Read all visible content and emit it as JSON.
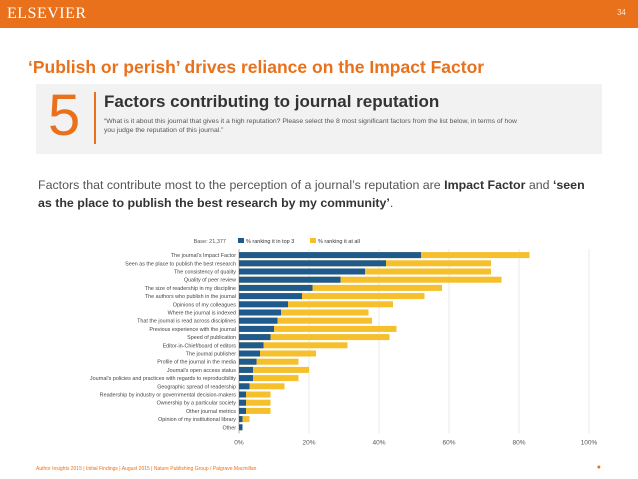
{
  "header": {
    "brand": "ELSEVIER",
    "slide_number": "34"
  },
  "slide_title": "‘Publish or perish’ drives reliance on the Impact Factor",
  "panel": {
    "number": "5",
    "heading": "Factors contributing to journal reputation",
    "question": "“What is it about this journal that gives it a high reputation? Please select the 8 most significant factors from the list below, in terms of how you judge the reputation of this journal.”"
  },
  "lead": {
    "text_1": "Factors that contribute most to the perception of a journal’s reputation are ",
    "bold_1": "Impact Factor",
    "text_2": " and ",
    "bold_2": "‘seen as the place to publish the best research by my community’",
    "text_3": "."
  },
  "colors": {
    "brand_orange": "#e9711c",
    "top3_blue": "#1f5a8c",
    "at_all_yellow": "#f5c02b"
  },
  "chart_data": {
    "type": "bar",
    "orientation": "horizontal",
    "stacked": "overlay",
    "base_label": "Base: 21,377",
    "categories": [
      "The journal’s Impact Factor",
      "Seen as the place to publish the best research",
      "The consistency of quality",
      "Quality of peer review",
      "The size of readership in my discipline",
      "The authors who publish in the journal",
      "Opinions of my colleagues",
      "Where the journal is indexed",
      "That the journal is read across disciplines",
      "Previous experience with the journal",
      "Speed of publication",
      "Editor-in-Chief/board of editors",
      "The journal publisher",
      "Profile of the journal in the media",
      "Journal’s open access status",
      "Journal’s policies and practices with regards to reproducibility",
      "Geographic spread of readership",
      "Readership by industry or governmental decision-makers",
      "Ownership by a particular society",
      "Other journal metrics",
      "Opinion of my institutional library",
      "Other"
    ],
    "series": [
      {
        "name": "% ranking it in top 3",
        "values": [
          52,
          42,
          36,
          29,
          21,
          18,
          14,
          12,
          11,
          10,
          9,
          7,
          6,
          5,
          4,
          4,
          3,
          2,
          2,
          2,
          1,
          1
        ]
      },
      {
        "name": "% ranking it at all",
        "values": [
          83,
          72,
          72,
          75,
          58,
          53,
          44,
          37,
          38,
          45,
          43,
          31,
          22,
          17,
          20,
          17,
          13,
          9,
          9,
          9,
          3,
          1
        ]
      }
    ],
    "x_ticks": [
      "0%",
      "20%",
      "40%",
      "60%",
      "80%",
      "100%"
    ],
    "xlim": [
      0,
      100
    ],
    "grid": true,
    "legend": "top"
  },
  "footer": {
    "source": "Author Insights 2015 | Initial Findings | August 2015 | Nature Publishing Group / Palgrave Macmillan",
    "mark": "●"
  }
}
